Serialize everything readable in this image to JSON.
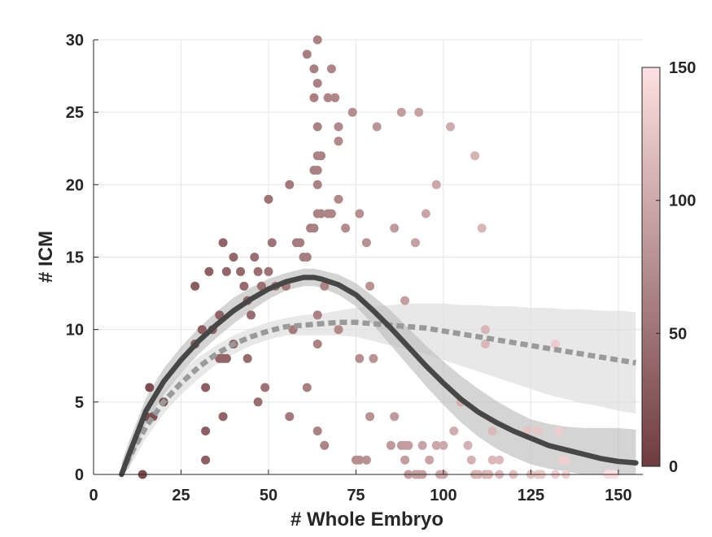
{
  "chart_data": {
    "type": "scatter",
    "title": "",
    "xlabel": "# Whole Embryo",
    "ylabel": "# ICM",
    "xlim": [
      0,
      157
    ],
    "ylim": [
      0,
      30
    ],
    "xticks": [
      0,
      25,
      50,
      75,
      100,
      125,
      150
    ],
    "yticks": [
      0,
      5,
      10,
      15,
      20,
      25,
      30
    ],
    "grid": true,
    "colorbar": {
      "range": [
        0,
        150
      ],
      "ticks": [
        0,
        50,
        100,
        150
      ],
      "color_low": "#6e3c3f",
      "color_high": "#fde0e1"
    },
    "points": [
      [
        14,
        0
      ],
      [
        15,
        4
      ],
      [
        16,
        6
      ],
      [
        17,
        4
      ],
      [
        20,
        5
      ],
      [
        29,
        9
      ],
      [
        29,
        13
      ],
      [
        31,
        10
      ],
      [
        32,
        6
      ],
      [
        32,
        1
      ],
      [
        32,
        3
      ],
      [
        33,
        14
      ],
      [
        34,
        10
      ],
      [
        36,
        8
      ],
      [
        36,
        11
      ],
      [
        37,
        8
      ],
      [
        37,
        16
      ],
      [
        37,
        4
      ],
      [
        38,
        14
      ],
      [
        38,
        8
      ],
      [
        40,
        15
      ],
      [
        40,
        9
      ],
      [
        42,
        14
      ],
      [
        43,
        13
      ],
      [
        44,
        12
      ],
      [
        44,
        8
      ],
      [
        45,
        11
      ],
      [
        46,
        15
      ],
      [
        47,
        5
      ],
      [
        47,
        14
      ],
      [
        48,
        13
      ],
      [
        49,
        6
      ],
      [
        50,
        14
      ],
      [
        50,
        19
      ],
      [
        51,
        16
      ],
      [
        52,
        13
      ],
      [
        55,
        13
      ],
      [
        56,
        4
      ],
      [
        56,
        20
      ],
      [
        57,
        10
      ],
      [
        58,
        16
      ],
      [
        59,
        16
      ],
      [
        60,
        15
      ],
      [
        61,
        29
      ],
      [
        61,
        15
      ],
      [
        61,
        6
      ],
      [
        62,
        17
      ],
      [
        63,
        17
      ],
      [
        63,
        28
      ],
      [
        63,
        26
      ],
      [
        63,
        21
      ],
      [
        64,
        30
      ],
      [
        64,
        27
      ],
      [
        64,
        24
      ],
      [
        64,
        22
      ],
      [
        64,
        21
      ],
      [
        64,
        20
      ],
      [
        64,
        18
      ],
      [
        64,
        11
      ],
      [
        64,
        9
      ],
      [
        64,
        3
      ],
      [
        65,
        22
      ],
      [
        65,
        18
      ],
      [
        66,
        13
      ],
      [
        66,
        2
      ],
      [
        67,
        26
      ],
      [
        67,
        18
      ],
      [
        68,
        28
      ],
      [
        68,
        18
      ],
      [
        69,
        26
      ],
      [
        70,
        24
      ],
      [
        70,
        23
      ],
      [
        70,
        19
      ],
      [
        70,
        10
      ],
      [
        72,
        17
      ],
      [
        74,
        25
      ],
      [
        75,
        1
      ],
      [
        76,
        18
      ],
      [
        76,
        8
      ],
      [
        76,
        1
      ],
      [
        78,
        16
      ],
      [
        78,
        1
      ],
      [
        79,
        13
      ],
      [
        79,
        4
      ],
      [
        80,
        8
      ],
      [
        81,
        24
      ],
      [
        85,
        2
      ],
      [
        86,
        17
      ],
      [
        86,
        4
      ],
      [
        88,
        25
      ],
      [
        88,
        2
      ],
      [
        89,
        2
      ],
      [
        89,
        12
      ],
      [
        89,
        1
      ],
      [
        90,
        0
      ],
      [
        90,
        2
      ],
      [
        92,
        0
      ],
      [
        92,
        16
      ],
      [
        93,
        25
      ],
      [
        93,
        0
      ],
      [
        94,
        2
      ],
      [
        94,
        0
      ],
      [
        95,
        18
      ],
      [
        96,
        1
      ],
      [
        98,
        20
      ],
      [
        98,
        2
      ],
      [
        99,
        0
      ],
      [
        100,
        2
      ],
      [
        100,
        0
      ],
      [
        102,
        24
      ],
      [
        103,
        3
      ],
      [
        105,
        5
      ],
      [
        107,
        2
      ],
      [
        108,
        1
      ],
      [
        109,
        22
      ],
      [
        109,
        0
      ],
      [
        110,
        0
      ],
      [
        111,
        17
      ],
      [
        112,
        10
      ],
      [
        112,
        0
      ],
      [
        112,
        9
      ],
      [
        113,
        0
      ],
      [
        114,
        3
      ],
      [
        114,
        1
      ],
      [
        116,
        1
      ],
      [
        116,
        0
      ],
      [
        120,
        0
      ],
      [
        124,
        3
      ],
      [
        125,
        0
      ],
      [
        127,
        0
      ],
      [
        127,
        3
      ],
      [
        128,
        0
      ],
      [
        132,
        0
      ],
      [
        132,
        9
      ],
      [
        133,
        3
      ],
      [
        134,
        1
      ],
      [
        135,
        0
      ],
      [
        135,
        1
      ],
      [
        147,
        0
      ],
      [
        148,
        0
      ],
      [
        149,
        0
      ]
    ],
    "series": [
      {
        "x": [
          8,
          10,
          15,
          20,
          25,
          30,
          35,
          40,
          45,
          50,
          55,
          60,
          63,
          65,
          70,
          75,
          80,
          85,
          90,
          95,
          100,
          105,
          110,
          115,
          120,
          125,
          130,
          135,
          140,
          145,
          150,
          155
        ],
        "y": [
          0,
          1.3,
          4.4,
          6.4,
          7.9,
          9.2,
          10.3,
          11.3,
          12.1,
          12.8,
          13.3,
          13.6,
          13.6,
          13.5,
          13.1,
          12.4,
          11.3,
          10.1,
          8.8,
          7.5,
          6.3,
          5.2,
          4.3,
          3.6,
          3.0,
          2.5,
          2.0,
          1.7,
          1.4,
          1.1,
          0.9,
          0.8
        ],
        "style": "solid",
        "color": "#474747",
        "band_upper": [
          0.8,
          2.2,
          5.3,
          7.3,
          8.8,
          10.1,
          11.2,
          12.2,
          12.9,
          13.5,
          13.9,
          14.2,
          14.2,
          14.1,
          13.8,
          13.2,
          12.3,
          11.3,
          10.1,
          8.9,
          7.8,
          6.8,
          5.9,
          5.1,
          4.4,
          3.8,
          3.5,
          3.3,
          3.2,
          3.2,
          3.2,
          3.1
        ],
        "band_lower": [
          0,
          0.4,
          3.5,
          5.5,
          7.0,
          8.3,
          9.4,
          10.4,
          11.3,
          12.1,
          12.7,
          13.0,
          13.0,
          12.9,
          12.4,
          11.6,
          10.3,
          8.9,
          7.5,
          6.1,
          4.8,
          3.6,
          2.6,
          1.8,
          1.2,
          0.7,
          0.4,
          0.2,
          0,
          0,
          0,
          0
        ],
        "band_color": "#bdbdbd"
      },
      {
        "x": [
          8,
          10,
          15,
          20,
          25,
          30,
          35,
          40,
          45,
          50,
          55,
          60,
          65,
          70,
          75,
          80,
          85,
          90,
          95,
          100,
          105,
          110,
          115,
          120,
          125,
          130,
          135,
          140,
          145,
          150,
          155
        ],
        "y": [
          0,
          1.1,
          3.3,
          5.0,
          6.3,
          7.4,
          8.3,
          9.0,
          9.5,
          9.9,
          10.2,
          10.3,
          10.4,
          10.5,
          10.5,
          10.4,
          10.3,
          10.2,
          10.1,
          9.9,
          9.7,
          9.5,
          9.3,
          9.1,
          8.9,
          8.7,
          8.5,
          8.3,
          8.1,
          7.9,
          7.7
        ],
        "style": "dashed",
        "color": "#9a9a9a",
        "band_upper": [
          0.6,
          1.8,
          4.1,
          5.8,
          7.1,
          8.1,
          8.9,
          9.6,
          10.1,
          10.5,
          10.8,
          11.0,
          11.1,
          11.3,
          11.5,
          11.6,
          11.7,
          11.8,
          11.8,
          11.8,
          11.7,
          11.7,
          11.6,
          11.6,
          11.5,
          11.5,
          11.4,
          11.4,
          11.3,
          11.3,
          11.2
        ],
        "band_lower": [
          0,
          0.4,
          2.5,
          4.2,
          5.5,
          6.6,
          7.6,
          8.3,
          8.9,
          9.3,
          9.6,
          9.6,
          9.6,
          9.6,
          9.5,
          9.2,
          8.9,
          8.6,
          8.3,
          7.9,
          7.5,
          7.1,
          6.7,
          6.3,
          5.9,
          5.5,
          5.2,
          4.9,
          4.7,
          4.4,
          4.2
        ],
        "band_color": "#dcdcdc"
      }
    ]
  }
}
